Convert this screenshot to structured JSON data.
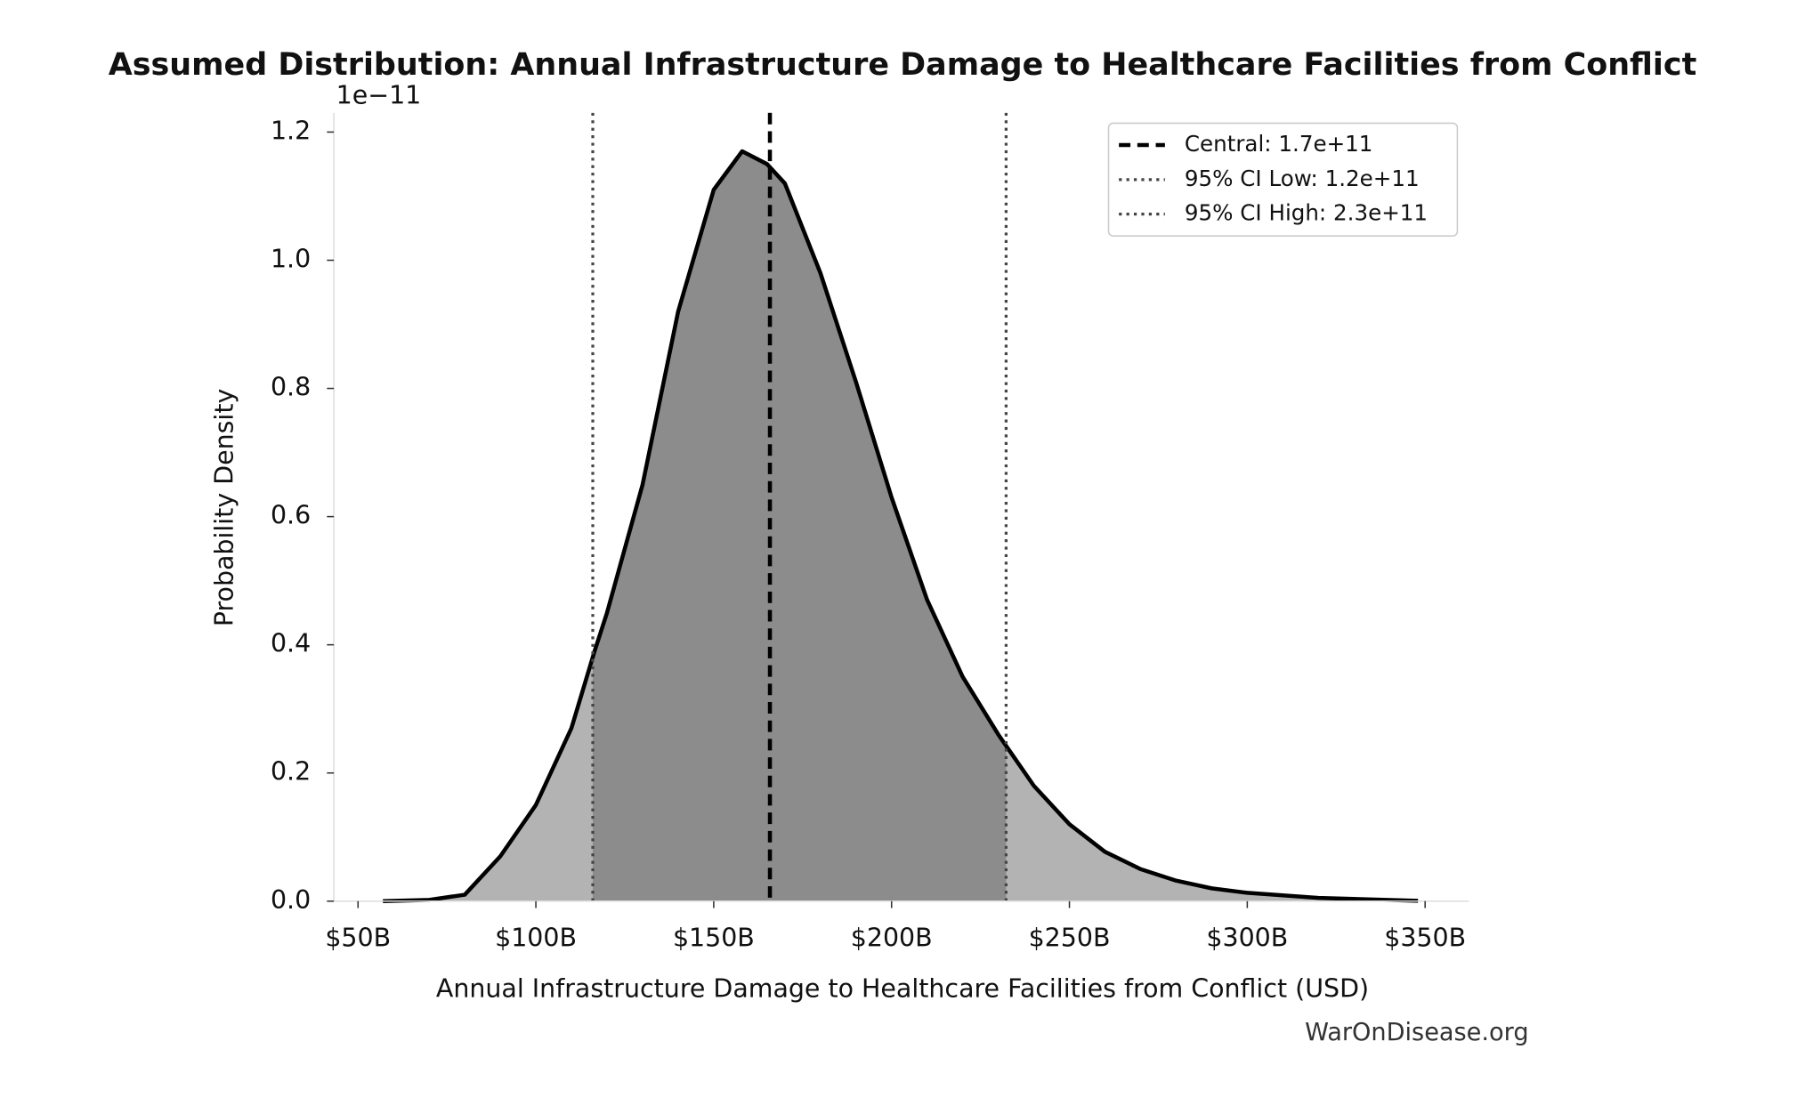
{
  "chart_data": {
    "type": "density",
    "title": "Assumed Distribution: Annual Infrastructure Damage to Healthcare Facilities from Conflict",
    "x_label": "Annual Infrastructure Damage to Healthcare Facilities from Conflict (USD)",
    "y_label": "Probability Density",
    "y_multiplier": "1e−11",
    "watermark": "WarOnDisease.org",
    "x": [
      57000000000,
      70000000000,
      80000000000,
      90000000000,
      100000000000,
      110000000000,
      116500000000,
      120000000000,
      130000000000,
      140000000000,
      150000000000,
      158000000000,
      165000000000,
      170000000000,
      180000000000,
      190000000000,
      200000000000,
      210000000000,
      220000000000,
      230000000000,
      232500000000,
      240000000000,
      250000000000,
      260000000000,
      270000000000,
      280000000000,
      290000000000,
      300000000000,
      320000000000,
      348000000000
    ],
    "series": [
      {
        "color": "#000000",
        "fill_outer": "#b3b3b3",
        "fill_inner": "#8c8c8c",
        "values": [
          0,
          0.002,
          0.01,
          0.07,
          0.15,
          0.27,
          0.39,
          0.45,
          0.65,
          0.92,
          1.11,
          1.17,
          1.15,
          1.12,
          0.98,
          0.81,
          0.63,
          0.47,
          0.35,
          0.26,
          0.24,
          0.18,
          0.12,
          0.077,
          0.05,
          0.032,
          0.02,
          0.013,
          0.005,
          0.0005
        ]
      }
    ],
    "vlines": [
      {
        "name": "Central: 1.7e+11",
        "value": 165800000000,
        "color": "#000000",
        "style": "dashed"
      },
      {
        "name": "95% CI Low: 1.2e+11",
        "value": 116000000000,
        "color": "#444444",
        "style": "dotted"
      },
      {
        "name": "95% CI High: 2.3e+11",
        "value": 232200000000,
        "color": "#444444",
        "style": "dotted"
      }
    ],
    "xlim": [
      43200000000,
      362300000000
    ],
    "ylim": [
      0,
      1.23
    ],
    "xticks": [
      {
        "value": 50000000000,
        "label": "$50B"
      },
      {
        "value": 100000000000,
        "label": "$100B"
      },
      {
        "value": 150000000000,
        "label": "$150B"
      },
      {
        "value": 200000000000,
        "label": "$200B"
      },
      {
        "value": 250000000000,
        "label": "$250B"
      },
      {
        "value": 300000000000,
        "label": "$300B"
      },
      {
        "value": 350000000000,
        "label": "$350B"
      }
    ],
    "yticks": [
      {
        "value": 0,
        "label": "0.0"
      },
      0.2,
      0.4,
      0.6,
      0.8,
      {
        "value": 1,
        "label": "1.0"
      },
      1.2
    ],
    "legend": "upper right"
  }
}
